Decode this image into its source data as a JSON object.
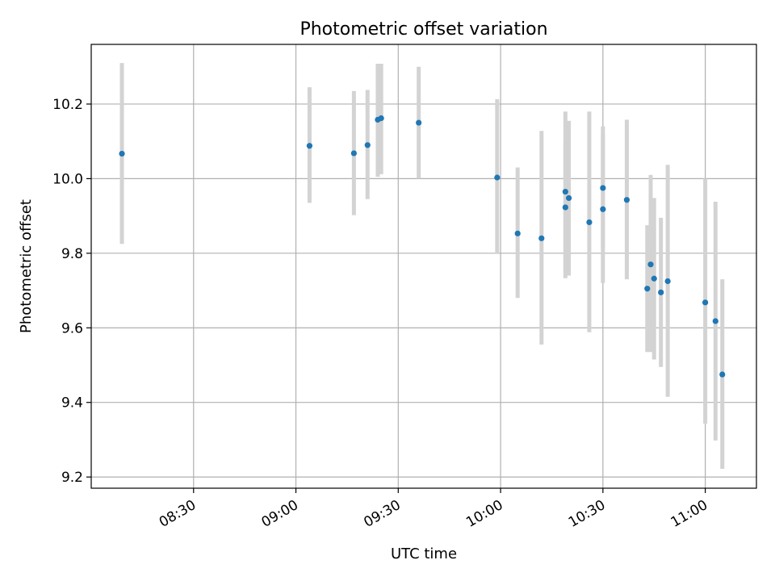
{
  "chart_data": {
    "type": "scatter",
    "title": "Photometric offset variation",
    "xlabel": "UTC time",
    "ylabel": "Photometric offset",
    "x_unit": "UTC time (HH:MM)",
    "xlim": [
      "08:00",
      "11:15"
    ],
    "ylim": [
      9.17,
      10.36
    ],
    "x_ticks": [
      "08:30",
      "09:00",
      "09:30",
      "10:00",
      "10:30",
      "11:00"
    ],
    "y_ticks": [
      9.2,
      9.4,
      9.6,
      9.8,
      10.0,
      10.2
    ],
    "grid": true,
    "legend": false,
    "colors": {
      "point": "#1f77b4",
      "errorbar": "#d3d3d3",
      "grid": "#b0b0b0"
    },
    "points": [
      {
        "x": "08:09",
        "y": 10.067,
        "ylo": 9.825,
        "yhi": 10.31
      },
      {
        "x": "09:04",
        "y": 10.088,
        "ylo": 9.935,
        "yhi": 10.245
      },
      {
        "x": "09:17",
        "y": 10.068,
        "ylo": 9.902,
        "yhi": 10.235
      },
      {
        "x": "09:21",
        "y": 10.09,
        "ylo": 9.945,
        "yhi": 10.238
      },
      {
        "x": "09:24",
        "y": 10.158,
        "ylo": 10.005,
        "yhi": 10.308
      },
      {
        "x": "09:25",
        "y": 10.162,
        "ylo": 10.012,
        "yhi": 10.308
      },
      {
        "x": "09:36",
        "y": 10.15,
        "ylo": 10.0,
        "yhi": 10.3
      },
      {
        "x": "09:59",
        "y": 10.003,
        "ylo": 9.798,
        "yhi": 10.213
      },
      {
        "x": "10:05",
        "y": 9.853,
        "ylo": 9.68,
        "yhi": 10.03
      },
      {
        "x": "10:12",
        "y": 9.84,
        "ylo": 9.555,
        "yhi": 10.128
      },
      {
        "x": "10:19",
        "y": 9.965,
        "ylo": 9.748,
        "yhi": 10.18
      },
      {
        "x": "10:19",
        "y": 9.923,
        "ylo": 9.733,
        "yhi": 10.103
      },
      {
        "x": "10:20",
        "y": 9.948,
        "ylo": 9.74,
        "yhi": 10.155
      },
      {
        "x": "10:26",
        "y": 9.883,
        "ylo": 9.588,
        "yhi": 10.18
      },
      {
        "x": "10:30",
        "y": 9.918,
        "ylo": 9.72,
        "yhi": 10.118
      },
      {
        "x": "10:30",
        "y": 9.975,
        "ylo": 9.815,
        "yhi": 10.14
      },
      {
        "x": "10:37",
        "y": 9.943,
        "ylo": 9.73,
        "yhi": 10.158
      },
      {
        "x": "10:43",
        "y": 9.705,
        "ylo": 9.535,
        "yhi": 9.875
      },
      {
        "x": "10:44",
        "y": 9.77,
        "ylo": 9.535,
        "yhi": 10.01
      },
      {
        "x": "10:45",
        "y": 9.732,
        "ylo": 9.515,
        "yhi": 9.948
      },
      {
        "x": "10:47",
        "y": 9.695,
        "ylo": 9.495,
        "yhi": 9.895
      },
      {
        "x": "10:49",
        "y": 9.725,
        "ylo": 9.415,
        "yhi": 10.037
      },
      {
        "x": "11:00",
        "y": 9.668,
        "ylo": 9.343,
        "yhi": 10.0
      },
      {
        "x": "11:03",
        "y": 9.618,
        "ylo": 9.298,
        "yhi": 9.938
      },
      {
        "x": "11:05",
        "y": 9.475,
        "ylo": 9.222,
        "yhi": 9.73
      }
    ]
  }
}
